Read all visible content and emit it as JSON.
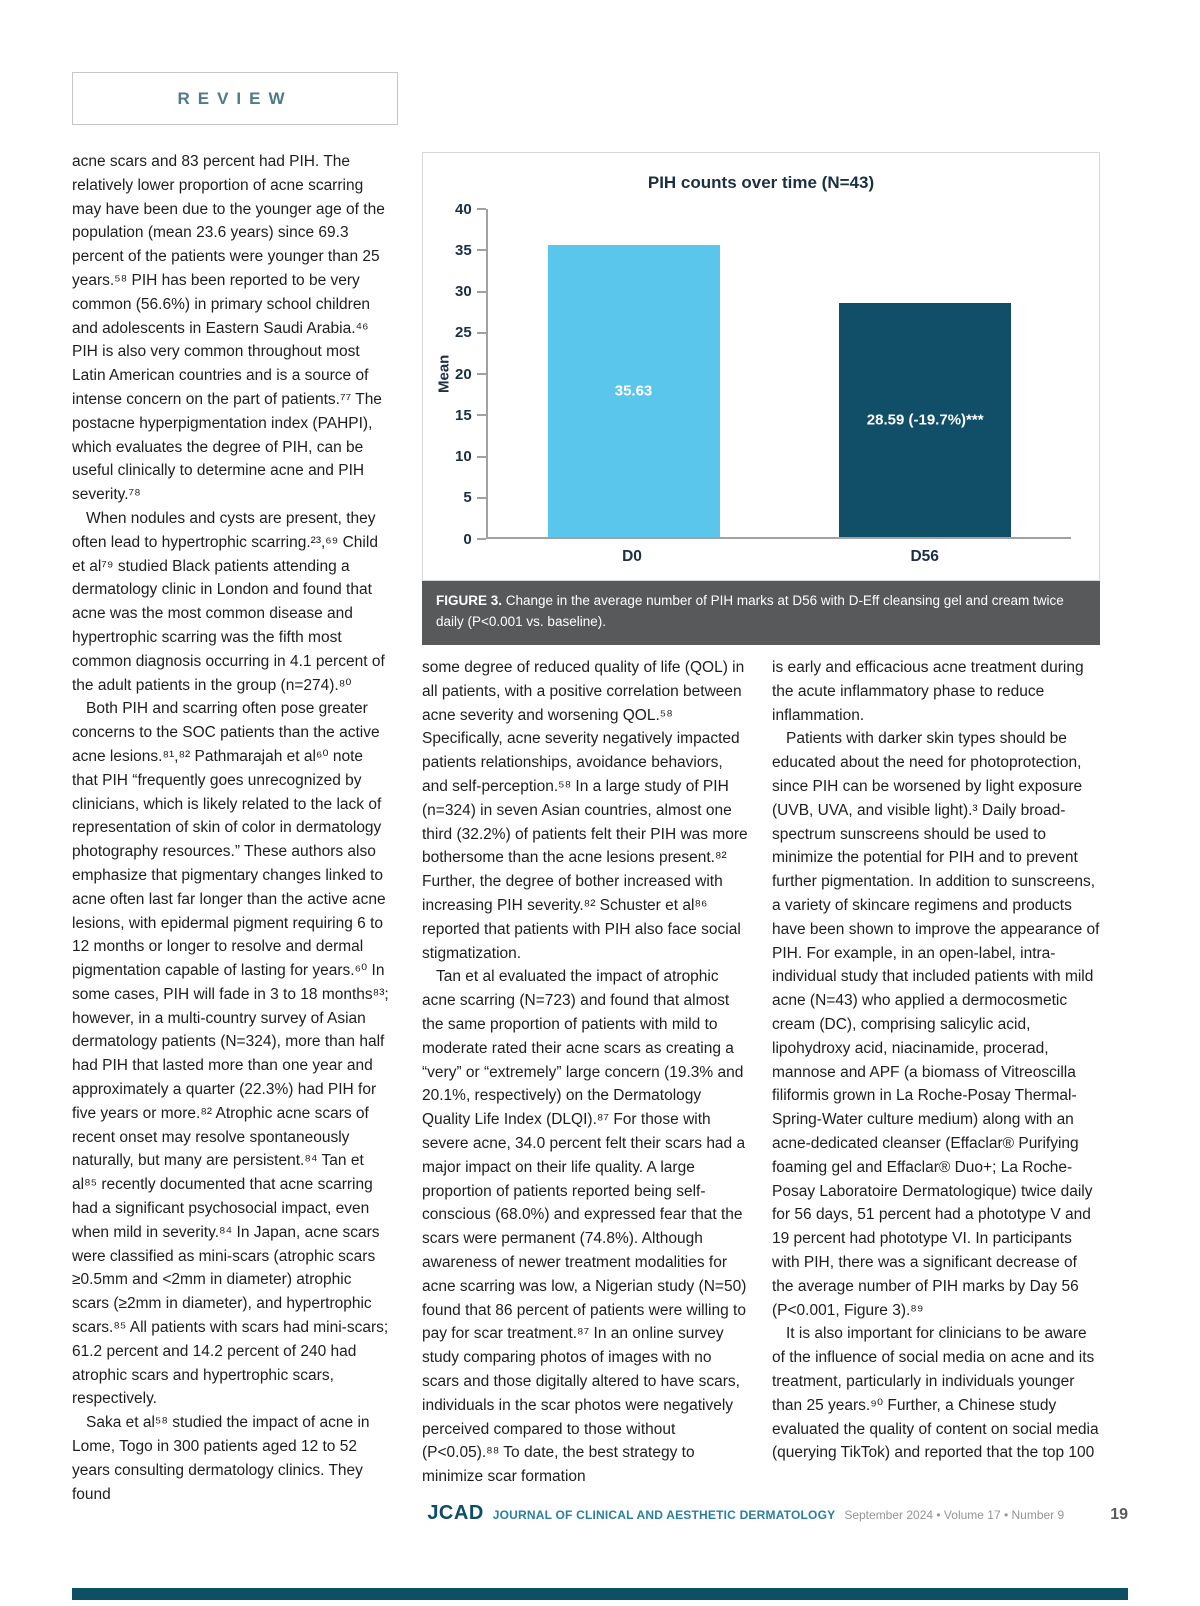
{
  "page": {
    "review_label": "REVIEW",
    "page_number": "19",
    "footer": {
      "journal_abbr": "JCAD",
      "journal_name": "JOURNAL OF CLINICAL AND AESTHETIC DERMATOLOGY",
      "issue_info": "September 2024 • Volume 17 • Number 9"
    }
  },
  "figure": {
    "caption_label": "FIGURE 3.",
    "caption_text": " Change in the average number of PIH marks at D56 with D-Eff cleansing gel and cream twice daily (P<0.001 vs. baseline)."
  },
  "chart_data": {
    "type": "bar",
    "title": "PIH counts over time (N=43)",
    "categories": [
      "D0",
      "D56"
    ],
    "values": [
      35.63,
      28.59
    ],
    "bar_labels": [
      "35.63",
      "28.59 (-19.7%)***"
    ],
    "bar_colors": [
      "#5bc6ec",
      "#114e68"
    ],
    "xlabel": "",
    "ylabel": "Mean",
    "ylim": [
      0,
      40
    ],
    "yticks": [
      0,
      5,
      10,
      15,
      20,
      25,
      30,
      35,
      40
    ],
    "grid": false,
    "legend": false
  },
  "columns": {
    "left": [
      "acne scars and 83 percent had PIH. The relatively lower proportion of acne scarring may have been due to the younger age of the population (mean 23.6 years) since 69.3 percent of the patients were younger than 25 years.⁵⁸ PIH has been reported to be very common (56.6%) in primary school children and adolescents in Eastern Saudi Arabia.⁴⁶ PIH is also very common throughout most Latin American countries and is a source of intense concern on the part of patients.⁷⁷ The postacne hyperpigmentation index (PAHPI), which evaluates the degree of PIH, can be useful clinically to determine acne and PIH severity.⁷⁸",
      "When nodules and cysts are present, they often lead to hypertrophic scarring.²³,⁶⁹ Child et al⁷⁹ studied Black patients attending a dermatology clinic in London and found that acne was the most common disease and hypertrophic scarring was the fifth most common diagnosis occurring in 4.1 percent of the adult patients in the group (n=274).⁸⁰",
      "Both PIH and scarring often pose greater concerns to the SOC patients than the active acne lesions.⁸¹,⁸² Pathmarajah et al⁶⁰ note that PIH “frequently goes unrecognized by clinicians, which is likely related to the lack of representation of skin of color in dermatology photography resources.” These authors also emphasize that pigmentary changes linked to acne often last far longer than the active acne lesions, with epidermal pigment requiring 6 to 12 months or longer to resolve and dermal pigmentation capable of lasting for years.⁶⁰ In some cases, PIH will fade in 3 to 18 months⁸³; however, in a multi-country survey of Asian dermatology patients (N=324), more than half had PIH that lasted more than one year and approximately a quarter (22.3%) had PIH for five years or more.⁸² Atrophic acne scars of recent onset may resolve spontaneously naturally, but many are persistent.⁸⁴ Tan et al⁸⁵ recently documented that acne scarring had a significant psychosocial impact, even when mild in severity.⁸⁴ In Japan, acne scars were classified as mini-scars (atrophic scars ≥0.5mm and <2mm in diameter) atrophic scars (≥2mm in diameter), and hypertrophic scars.⁸⁵ All patients with scars had mini-scars; 61.2 percent and 14.2 percent of 240 had atrophic scars and hypertrophic scars, respectively.",
      "Saka et al⁵⁸ studied the impact of acne in Lome, Togo in 300 patients aged 12 to 52 years consulting dermatology clinics. They found"
    ],
    "middle": [
      "some degree of reduced quality of life (QOL) in all patients, with a positive correlation between acne severity and worsening QOL.⁵⁸ Specifically, acne severity negatively impacted patients relationships, avoidance behaviors, and self-perception.⁵⁸ In a large study of PIH (n=324) in seven Asian countries, almost one third (32.2%) of patients felt their PIH was more bothersome than the acne lesions present.⁸² Further, the degree of bother increased with increasing PIH severity.⁸² Schuster et al⁸⁶ reported that patients with PIH also face social stigmatization.",
      "Tan et al evaluated the impact of atrophic acne scarring (N=723) and found that almost the same proportion of patients with mild to moderate rated their acne scars as creating a “very” or “extremely” large concern (19.3% and 20.1%, respectively) on the Dermatology Quality Life Index (DLQI).⁸⁷ For those with severe acne, 34.0 percent felt their scars had a major impact on their life quality. A large proportion of patients reported being self-conscious (68.0%) and expressed fear that the scars were permanent (74.8%). Although awareness of newer treatment modalities for acne scarring was low, a Nigerian study (N=50) found that 86 percent of patients were willing to pay for scar treatment.⁸⁷ In an online survey study comparing photos of images with no scars and those digitally altered to have scars, individuals in the scar photos were negatively perceived compared to those without (P<0.05).⁸⁸ To date, the best strategy to minimize scar formation"
    ],
    "right": [
      "is early and efficacious acne treatment during the acute inflammatory phase to reduce inflammation.",
      "Patients with darker skin types should be educated about the need for photoprotection, since PIH can be worsened by light exposure (UVB, UVA, and visible light).³ Daily broad-spectrum sunscreens should be used to minimize the potential for PIH and to prevent further pigmentation. In addition to sunscreens, a variety of skincare regimens and products have been shown to improve the appearance of PIH. For example, in an open-label, intra-individual study that included patients with mild acne (N=43) who applied a dermocosmetic cream (DC), comprising salicylic acid, lipohydroxy acid, niacinamide, procerad, mannose and APF (a biomass of Vitreoscilla filiformis grown in La Roche-Posay Thermal-Spring-Water culture medium) along with an acne-dedicated cleanser (Effaclar® Purifying foaming gel and Effaclar® Duo+; La Roche-Posay Laboratoire Dermatologique) twice daily for 56 days, 51 percent had a phototype V and 19 percent had phototype VI. In participants with PIH, there was a significant decrease of the average number of PIH marks by Day 56 (P<0.001, Figure 3).⁸⁹",
      "It is also important for clinicians to be aware of the influence of social media on acne and its treatment, particularly in individuals younger than 25 years.⁹⁰ Further, a Chinese study evaluated the quality of content on social media (querying TikTok) and reported that the top 100"
    ]
  }
}
